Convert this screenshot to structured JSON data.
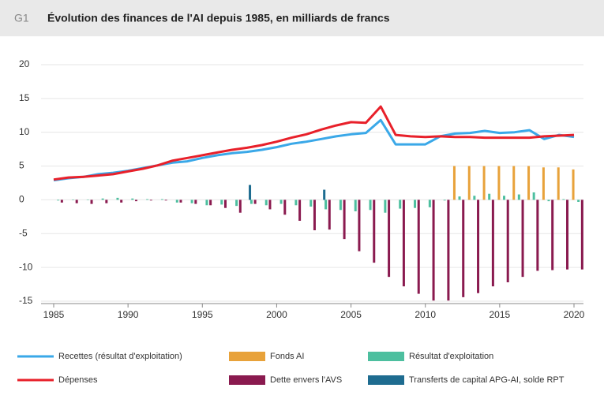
{
  "chart_data": {
    "type": "combo",
    "figure_label": "G1",
    "title": "Évolution des finances de l'AI depuis 1985, en milliards de francs",
    "x": [
      1985,
      1986,
      1987,
      1988,
      1989,
      1990,
      1991,
      1992,
      1993,
      1994,
      1995,
      1996,
      1997,
      1998,
      1999,
      2000,
      2001,
      2002,
      2003,
      2004,
      2005,
      2006,
      2007,
      2008,
      2009,
      2010,
      2011,
      2012,
      2013,
      2014,
      2015,
      2016,
      2017,
      2018,
      2019,
      2020
    ],
    "xlim": [
      1985,
      2020
    ],
    "xticks": [
      1985,
      1990,
      1995,
      2000,
      2005,
      2010,
      2015,
      2020
    ],
    "ylim": [
      -15,
      20
    ],
    "yticks": [
      -15,
      -10,
      -5,
      0,
      5,
      10,
      15,
      20
    ],
    "grid": true,
    "series": [
      {
        "name": "Recettes (résultat d'exploitation)",
        "kind": "line",
        "color": "#3aa8e8",
        "values": [
          2.9,
          3.2,
          3.4,
          3.8,
          4.0,
          4.3,
          4.7,
          5.1,
          5.5,
          5.7,
          6.2,
          6.6,
          6.9,
          7.1,
          7.4,
          7.8,
          8.3,
          8.6,
          9.0,
          9.4,
          9.7,
          9.9,
          11.8,
          8.2,
          8.2,
          8.2,
          9.4,
          9.8,
          9.9,
          10.2,
          9.9,
          10.0,
          10.3,
          9.0,
          9.6,
          9.3
        ]
      },
      {
        "name": "Fonds AI",
        "kind": "bar",
        "color": "#e8a23a",
        "values": [
          null,
          null,
          null,
          null,
          null,
          null,
          null,
          null,
          null,
          null,
          null,
          null,
          null,
          null,
          null,
          null,
          null,
          null,
          null,
          null,
          null,
          null,
          null,
          null,
          null,
          null,
          null,
          5.0,
          5.0,
          5.0,
          5.0,
          5.0,
          5.0,
          4.8,
          4.8,
          4.5
        ]
      },
      {
        "name": "Résultat d'exploitation",
        "kind": "bar",
        "color": "#4dbf9f",
        "values": [
          -0.1,
          0.0,
          0.0,
          0.2,
          0.3,
          0.2,
          0.1,
          0.1,
          -0.4,
          -0.5,
          -0.8,
          -0.7,
          -0.9,
          -0.6,
          -0.8,
          -0.6,
          -0.8,
          -1.0,
          -1.4,
          -1.5,
          -1.7,
          -1.5,
          -1.9,
          -1.3,
          -1.2,
          -1.1,
          -0.1,
          0.5,
          0.6,
          0.9,
          0.6,
          0.8,
          1.1,
          -0.2,
          0.1,
          -0.3
        ]
      },
      {
        "name": "Dépenses",
        "kind": "line",
        "color": "#e8202a",
        "values": [
          3.0,
          3.3,
          3.4,
          3.6,
          3.8,
          4.2,
          4.6,
          5.1,
          5.8,
          6.2,
          6.6,
          7.0,
          7.4,
          7.7,
          8.1,
          8.6,
          9.2,
          9.7,
          10.4,
          11.0,
          11.5,
          11.4,
          13.8,
          9.6,
          9.4,
          9.3,
          9.4,
          9.3,
          9.3,
          9.2,
          9.2,
          9.2,
          9.2,
          9.4,
          9.5,
          9.6
        ]
      },
      {
        "name": "Dette envers l'AVS",
        "kind": "bar",
        "color": "#8a1a4f",
        "values": [
          -0.4,
          -0.5,
          -0.6,
          -0.5,
          -0.4,
          -0.2,
          -0.1,
          -0.1,
          -0.4,
          -0.6,
          -0.8,
          -1.2,
          -1.9,
          -0.6,
          -1.4,
          -2.2,
          -3.1,
          -4.5,
          -4.4,
          -5.8,
          -7.6,
          -9.3,
          -11.4,
          -12.8,
          -13.9,
          -14.9,
          -14.9,
          -14.4,
          -13.8,
          -12.8,
          -12.2,
          -11.4,
          -10.5,
          -10.4,
          -10.3,
          -10.3
        ]
      },
      {
        "name": "Transferts de capital APG-AI, solde RPT",
        "kind": "bar",
        "color": "#1e6c90",
        "values": [
          null,
          null,
          null,
          null,
          null,
          null,
          null,
          null,
          null,
          null,
          null,
          null,
          null,
          2.2,
          null,
          null,
          null,
          null,
          1.5,
          null,
          null,
          null,
          null,
          null,
          null,
          null,
          null,
          null,
          null,
          null,
          null,
          null,
          null,
          null,
          null,
          null
        ]
      }
    ]
  }
}
